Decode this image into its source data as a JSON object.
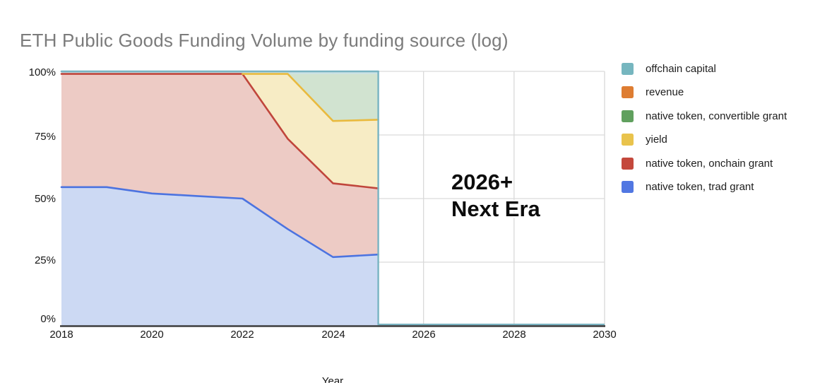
{
  "title": "ETH Public Goods Funding Volume by funding source (log)",
  "annotation": {
    "line1": "2026+",
    "line2": "Next Era"
  },
  "legend": {
    "position": "right",
    "items": [
      {
        "label": "offchain capital",
        "color": "#76b6bf"
      },
      {
        "label": "revenue",
        "color": "#de7d32"
      },
      {
        "label": "native token, convertible grant",
        "color": "#60a05e"
      },
      {
        "label": "yield",
        "color": "#e9c34c"
      },
      {
        "label": "native token, onchain grant",
        "color": "#c4483c"
      },
      {
        "label": "native token, trad grant",
        "color": "#5177e2"
      }
    ]
  },
  "y_axis": {
    "ticks": [
      "100%",
      "75%",
      "50%",
      "25%",
      "0%"
    ]
  },
  "x_axis": {
    "label": "Year",
    "ticks": [
      "2018",
      "2020",
      "2022",
      "2024",
      "2026",
      "2028",
      "2030"
    ]
  },
  "chart_data": {
    "type": "area",
    "stacked": true,
    "title": "ETH Public Goods Funding Volume by funding source (log)",
    "xlabel": "Year",
    "ylabel": "",
    "xlim": [
      2018,
      2030
    ],
    "ylim_percent": [
      0,
      100
    ],
    "grid": true,
    "x": [
      2018,
      2019,
      2020,
      2021,
      2022,
      2023,
      2024,
      2025
    ],
    "series": [
      {
        "name": "native token, trad grant",
        "stroke": "#4c73e0",
        "fill": "#ccd9f3",
        "values": [
          54.5,
          54.5,
          52,
          51,
          50,
          38,
          27,
          28
        ]
      },
      {
        "name": "native token, onchain grant",
        "stroke": "#c0463c",
        "fill": "#edcbc5",
        "values": [
          44.5,
          44.5,
          47,
          48,
          49,
          35.5,
          29,
          26
        ]
      },
      {
        "name": "yield",
        "stroke": "#e9ba3e",
        "fill": "#f7ecc5",
        "values": [
          0,
          0,
          0,
          0,
          0,
          25.5,
          24.5,
          27
        ]
      },
      {
        "name": "native token, convertible grant",
        "stroke": null,
        "fill": "#d1e3d0",
        "values": [
          0,
          0,
          0,
          0,
          0,
          0,
          18.5,
          18
        ]
      },
      {
        "name": "revenue",
        "stroke": null,
        "fill": "#f0c6a5",
        "values": [
          0,
          0,
          0,
          0,
          0,
          0,
          0,
          0
        ]
      },
      {
        "name": "offchain capital",
        "stroke": "#79b4c2",
        "fill": "#c8e0e4",
        "values": [
          1,
          1,
          1,
          1,
          1,
          1,
          1,
          1
        ]
      }
    ],
    "offchain_tail": {
      "from": 2025,
      "to": 2030,
      "value": 0.5
    },
    "gridline_color": "#d9d9d9",
    "axis_color": "#3d3d3d",
    "title_color": "#7b7b7b"
  }
}
